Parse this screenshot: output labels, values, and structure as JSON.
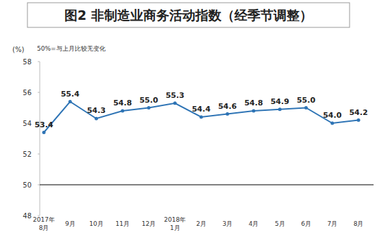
{
  "chart_data": {
    "type": "line",
    "title": "图2  非制造业商务活动指数（经季节调整）",
    "y_unit": "(%)",
    "annotation": "50%=与上月比较无变化",
    "reference_line": 50,
    "categories": [
      "2017年\n8月",
      "9月",
      "10月",
      "11月",
      "12月",
      "2018年\n1月",
      "2月",
      "3月",
      "4月",
      "5月",
      "6月",
      "7月",
      "8月"
    ],
    "values": [
      53.4,
      55.4,
      54.3,
      54.8,
      55.0,
      55.3,
      54.4,
      54.6,
      54.8,
      54.9,
      55.0,
      54.0,
      54.2
    ],
    "value_labels": [
      "53.4",
      "55.4",
      "54.3",
      "54.8",
      "55.0",
      "55.3",
      "54.4",
      "54.6",
      "54.8",
      "54.9",
      "55.0",
      "54.0",
      "54.2"
    ],
    "color": "#2e74b5",
    "marker": "circle",
    "data_labels": true,
    "grid": false,
    "ylim": [
      48,
      58
    ],
    "yticks": [
      48,
      50,
      52,
      54,
      56,
      58
    ]
  }
}
